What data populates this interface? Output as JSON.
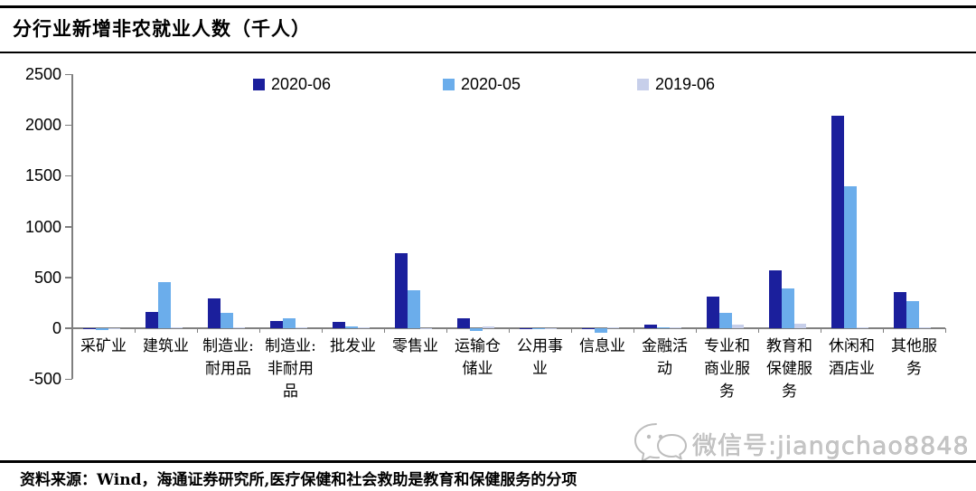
{
  "title": "分行业新增非农就业人数（千人）",
  "source_note": "资料来源：Wind，海通证券研究所,医疗保健和社会救助是教育和保健服务的分项",
  "watermark": {
    "icon": "wechat-icon",
    "label": "微信号:jiangchao8848"
  },
  "colors": {
    "series_2020_06": "#1B1F9C",
    "series_2020_05": "#6BADEB",
    "series_2019_06": "#C7CFEA",
    "axis": "#7f7f7f",
    "watermark": "#c6c6c6"
  },
  "chart_data": {
    "type": "bar",
    "title": "分行业新增非农就业人数（千人）",
    "xlabel": "",
    "ylabel": "",
    "ylim": [
      -500,
      2500
    ],
    "yticks": [
      2500,
      2000,
      1500,
      1000,
      500,
      0,
      -500
    ],
    "grid": false,
    "legend_position": "top",
    "categories": [
      "采矿业",
      "建筑业",
      "制造业:耐用品",
      "制造业:非耐用品",
      "批发业",
      "零售业",
      "运输仓储业",
      "公用事业",
      "信息业",
      "金融活动",
      "专业和商业服务",
      "教育和保健服务",
      "休闲和酒店业",
      "其他服务"
    ],
    "category_label_lines": [
      [
        "采矿业"
      ],
      [
        "建筑业"
      ],
      [
        "制造业:",
        "耐用品"
      ],
      [
        "制造业:",
        "非耐用",
        "品"
      ],
      [
        "批发业"
      ],
      [
        "零售业"
      ],
      [
        "运输仓",
        "储业"
      ],
      [
        "公用事",
        "业"
      ],
      [
        "信息业"
      ],
      [
        "金融活",
        "动"
      ],
      [
        "专业和",
        "商业服",
        "务"
      ],
      [
        "教育和",
        "保健服",
        "务"
      ],
      [
        "休闲和",
        "酒店业"
      ],
      [
        "其他服",
        "务"
      ]
    ],
    "series": [
      {
        "name": "2020-06",
        "color": "#1B1F9C",
        "values": [
          -10,
          158,
          290,
          66,
          60,
          740,
          99,
          -3,
          -5,
          32,
          306,
          568,
          2088,
          357
        ]
      },
      {
        "name": "2020-05",
        "color": "#6BADEB",
        "values": [
          -20,
          453,
          152,
          95,
          18,
          368,
          -30,
          -8,
          -45,
          10,
          153,
          390,
          1400,
          263
        ]
      },
      {
        "name": "2019-06",
        "color": "#C7CFEA",
        "values": [
          -5,
          10,
          10,
          5,
          3,
          -8,
          15,
          2,
          8,
          5,
          36,
          45,
          10,
          8
        ]
      }
    ]
  }
}
